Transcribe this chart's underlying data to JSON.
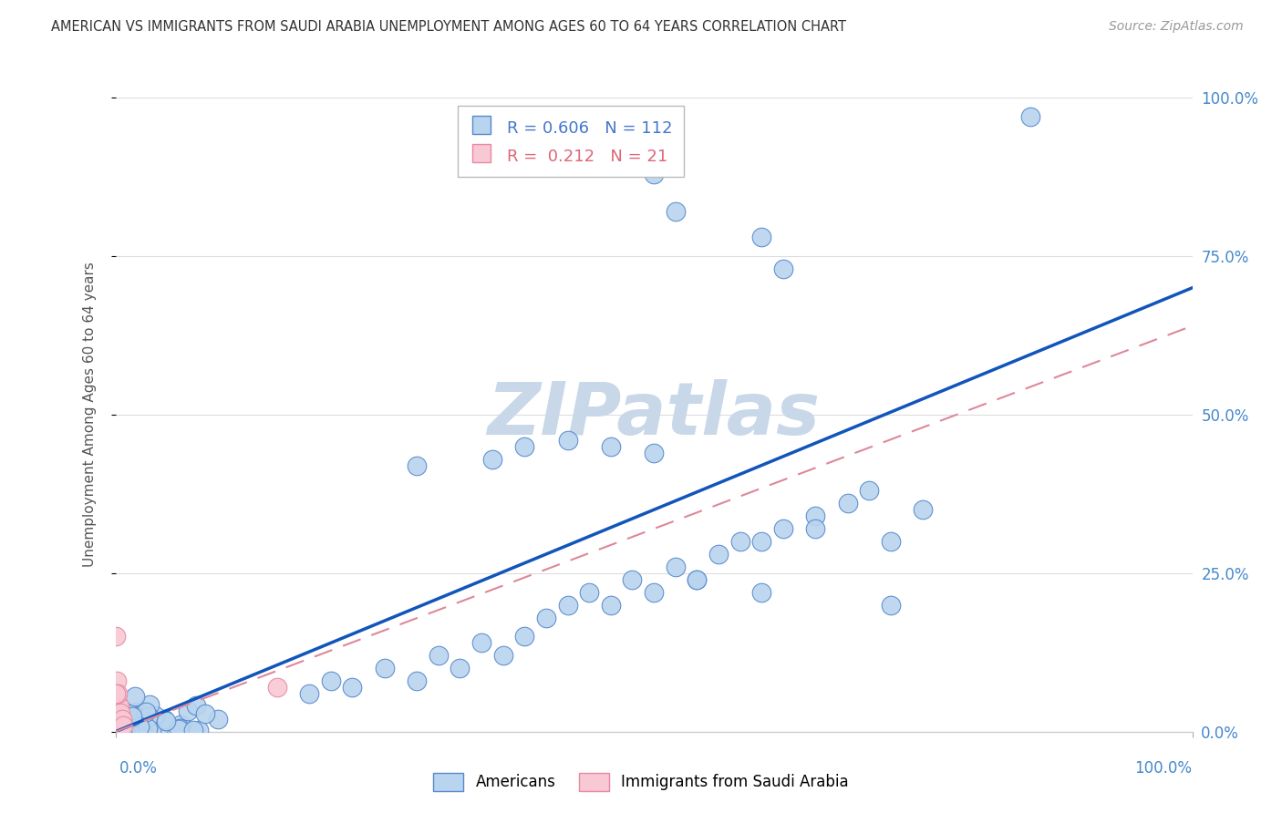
{
  "title": "AMERICAN VS IMMIGRANTS FROM SAUDI ARABIA UNEMPLOYMENT AMONG AGES 60 TO 64 YEARS CORRELATION CHART",
  "source": "Source: ZipAtlas.com",
  "ylabel": "Unemployment Among Ages 60 to 64 years",
  "r_american": 0.606,
  "n_american": 112,
  "r_saudi": 0.212,
  "n_saudi": 21,
  "american_color": "#b8d4ee",
  "american_edge": "#5588cc",
  "saudi_color": "#f8c8d4",
  "saudi_edge": "#e888a0",
  "watermark": "ZIPatlas",
  "legend_americans": "Americans",
  "legend_saudi": "Immigrants from Saudi Arabia",
  "ytick_labels": [
    "0.0%",
    "25.0%",
    "50.0%",
    "75.0%",
    "100.0%"
  ],
  "ytick_values": [
    0.0,
    0.25,
    0.5,
    0.75,
    1.0
  ],
  "reg_line_am_color": "#1155bb",
  "reg_line_sa_color": "#dd8899",
  "background": "#ffffff",
  "grid_color": "#dddddd",
  "title_color": "#333333",
  "source_color": "#999999",
  "tick_color": "#4488cc",
  "watermark_color": "#c8d8e8"
}
